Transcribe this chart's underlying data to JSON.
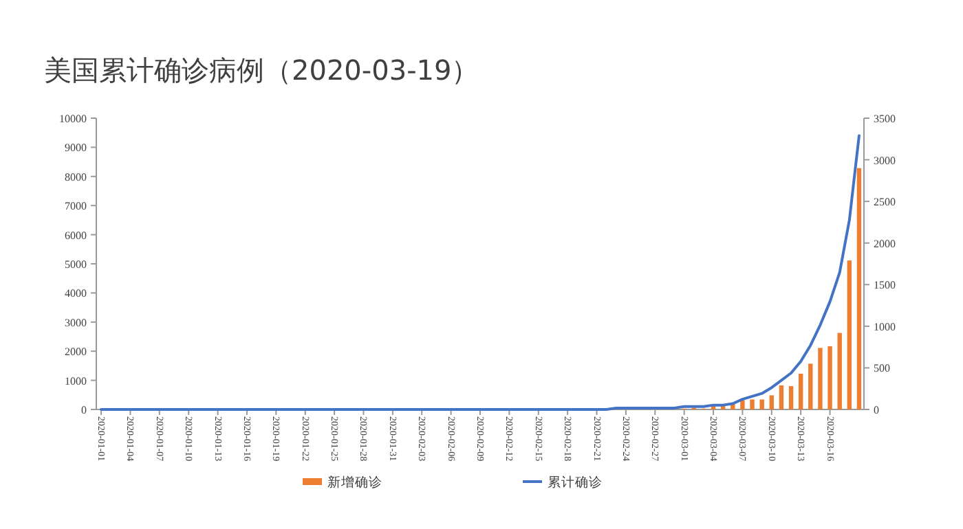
{
  "chart_data": {
    "type": "bar",
    "title": "美国累计确诊病例（2020-03-19）",
    "categories": [
      "2020-01-01",
      null,
      null,
      "2020-01-04",
      null,
      null,
      "2020-01-07",
      null,
      null,
      "2020-01-10",
      null,
      null,
      "2020-01-13",
      null,
      null,
      "2020-01-16",
      null,
      null,
      "2020-01-19",
      null,
      null,
      "2020-01-22",
      null,
      null,
      "2020-01-25",
      null,
      null,
      "2020-01-28",
      null,
      null,
      "2020-01-31",
      null,
      null,
      "2020-02-03",
      null,
      null,
      "2020-02-06",
      null,
      null,
      "2020-02-09",
      null,
      null,
      "2020-02-12",
      null,
      null,
      "2020-02-15",
      null,
      null,
      "2020-02-18",
      null,
      null,
      "2020-02-21",
      null,
      null,
      "2020-02-24",
      null,
      null,
      "2020-02-27",
      null,
      null,
      "2020-03-01",
      null,
      null,
      "2020-03-04",
      null,
      null,
      "2020-03-07",
      null,
      null,
      "2020-03-10",
      null,
      null,
      "2020-03-13",
      null,
      null,
      "2020-03-16",
      null,
      null,
      null
    ],
    "series": [
      {
        "name": "新增确诊",
        "axis": "y2",
        "color": "#ed7d31",
        "values": [
          0,
          0,
          0,
          0,
          0,
          0,
          0,
          0,
          0,
          0,
          0,
          0,
          0,
          0,
          0,
          0,
          0,
          0,
          0,
          0,
          0,
          0,
          0,
          0,
          0,
          0,
          0,
          0,
          0,
          0,
          0,
          0,
          0,
          0,
          0,
          0,
          0,
          0,
          0,
          0,
          0,
          0,
          0,
          0,
          0,
          0,
          0,
          0,
          0,
          0,
          0,
          0,
          0,
          0,
          0,
          0,
          0,
          0,
          0,
          0,
          10,
          20,
          10,
          40,
          60,
          80,
          110,
          120,
          120,
          170,
          290,
          280,
          430,
          550,
          740,
          760,
          920,
          1790,
          2900
        ]
      },
      {
        "name": "累计确诊",
        "type": "line",
        "color": "#4472c4",
        "values": [
          0,
          0,
          0,
          0,
          0,
          0,
          0,
          0,
          0,
          0,
          0,
          0,
          0,
          0,
          0,
          0,
          0,
          0,
          0,
          0,
          0,
          0,
          0,
          0,
          0,
          0,
          0,
          0,
          0,
          0,
          0,
          0,
          0,
          0,
          0,
          0,
          0,
          0,
          0,
          0,
          0,
          0,
          0,
          0,
          0,
          0,
          0,
          0,
          0,
          0,
          0,
          0,
          0,
          50,
          50,
          50,
          50,
          50,
          50,
          50,
          100,
          100,
          100,
          150,
          150,
          200,
          350,
          450,
          550,
          750,
          1000,
          1250,
          1650,
          2200,
          2900,
          3700,
          4700,
          6500,
          9400
        ]
      }
    ],
    "ylim": [
      0,
      10000
    ],
    "yticks": [
      0,
      1000,
      2000,
      3000,
      4000,
      5000,
      6000,
      7000,
      8000,
      9000,
      10000
    ],
    "y2lim": [
      0,
      3500
    ],
    "y2ticks": [
      0,
      500,
      1000,
      1500,
      2000,
      2500,
      3000,
      3500
    ],
    "legend": "bottom"
  }
}
